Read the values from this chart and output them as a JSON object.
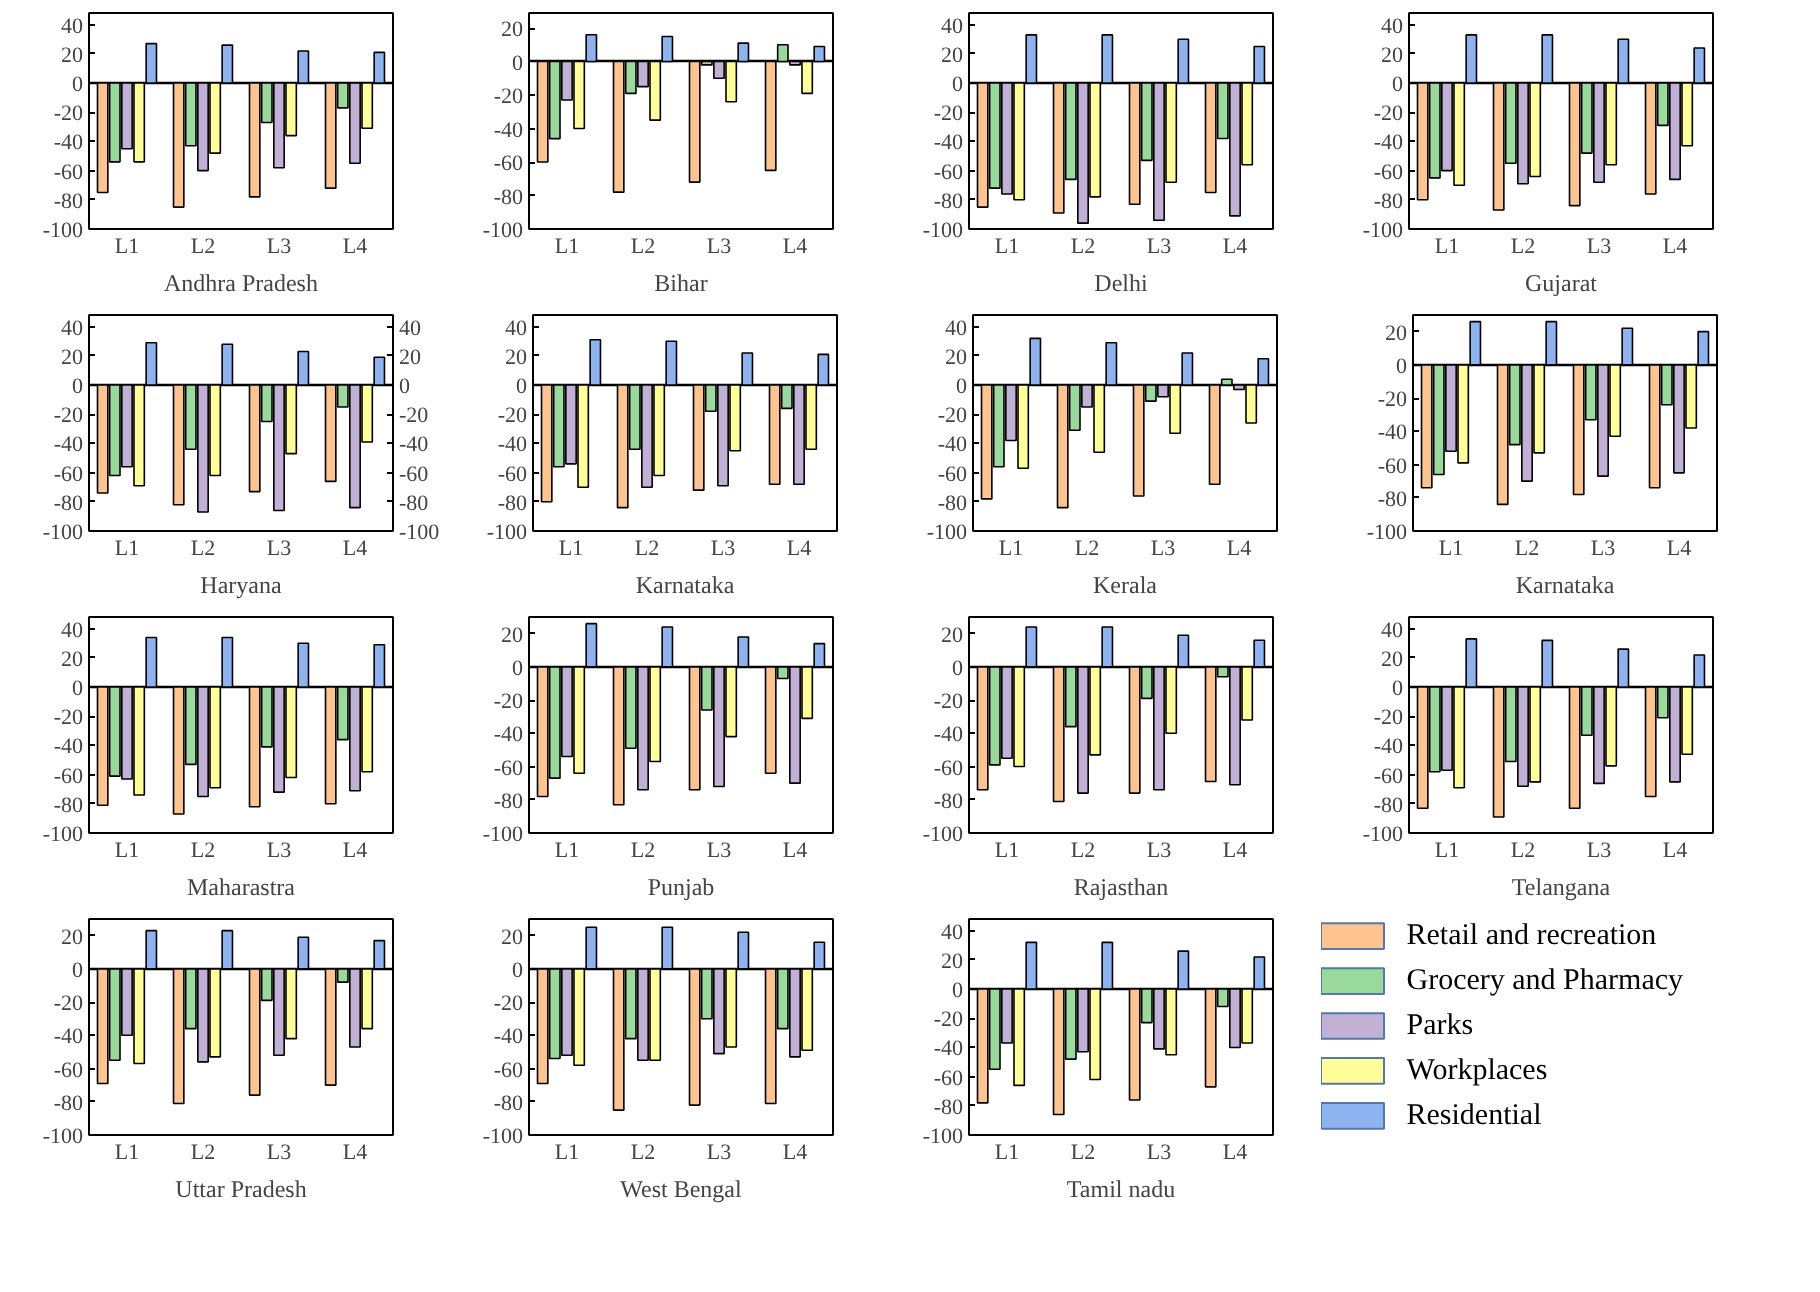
{
  "chart_data": [
    {
      "type": "bar",
      "xlabel": "Andhra Pradesh",
      "categories": [
        "L1",
        "L2",
        "L3",
        "L4"
      ],
      "ylim": [
        -100,
        48
      ],
      "yticks": [
        -100,
        -80,
        -60,
        -40,
        -20,
        0,
        20,
        40
      ],
      "series": [
        {
          "color": "#fdc48f",
          "values": [
            -75,
            -85,
            -78,
            -72
          ]
        },
        {
          "color": "#99d99b",
          "values": [
            -54,
            -43,
            -27,
            -17
          ]
        },
        {
          "color": "#c2b1d6",
          "values": [
            -45,
            -60,
            -58,
            -55
          ]
        },
        {
          "color": "#ffff99",
          "values": [
            -54,
            -48,
            -36,
            -31
          ]
        },
        {
          "color": "#8db4f0",
          "values": [
            27,
            26,
            22,
            21
          ]
        }
      ]
    },
    {
      "type": "bar",
      "xlabel": "Bihar",
      "categories": [
        "L1",
        "L2",
        "L3",
        "L4"
      ],
      "ylim": [
        -100,
        29
      ],
      "yticks": [
        -100,
        -80,
        -60,
        -40,
        -20,
        0,
        20
      ],
      "series": [
        {
          "color": "#fdc48f",
          "values": [
            -60,
            -78,
            -72,
            -65
          ]
        },
        {
          "color": "#99d99b",
          "values": [
            -46,
            -19,
            -2,
            10
          ]
        },
        {
          "color": "#c2b1d6",
          "values": [
            -23,
            -15,
            -10,
            -2
          ]
        },
        {
          "color": "#ffff99",
          "values": [
            -40,
            -35,
            -24,
            -19
          ]
        },
        {
          "color": "#8db4f0",
          "values": [
            16,
            15,
            11,
            9
          ]
        }
      ]
    },
    {
      "type": "bar",
      "xlabel": "Delhi",
      "categories": [
        "L1",
        "L2",
        "L3",
        "L4"
      ],
      "ylim": [
        -100,
        48
      ],
      "yticks": [
        -100,
        -80,
        -60,
        -40,
        -20,
        0,
        20,
        40
      ],
      "series": [
        {
          "color": "#fdc48f",
          "values": [
            -85,
            -89,
            -83,
            -75
          ]
        },
        {
          "color": "#99d99b",
          "values": [
            -72,
            -66,
            -53,
            -38
          ]
        },
        {
          "color": "#c2b1d6",
          "values": [
            -76,
            -96,
            -94,
            -91
          ]
        },
        {
          "color": "#ffff99",
          "values": [
            -80,
            -78,
            -68,
            -56
          ]
        },
        {
          "color": "#8db4f0",
          "values": [
            33,
            33,
            30,
            25
          ]
        }
      ]
    },
    {
      "type": "bar",
      "xlabel": "Gujarat",
      "categories": [
        "L1",
        "L2",
        "L3",
        "L4"
      ],
      "ylim": [
        -100,
        48
      ],
      "yticks": [
        -100,
        -80,
        -60,
        -40,
        -20,
        0,
        20,
        40
      ],
      "series": [
        {
          "color": "#fdc48f",
          "values": [
            -80,
            -87,
            -84,
            -76
          ]
        },
        {
          "color": "#99d99b",
          "values": [
            -65,
            -55,
            -48,
            -29
          ]
        },
        {
          "color": "#c2b1d6",
          "values": [
            -60,
            -69,
            -68,
            -66
          ]
        },
        {
          "color": "#ffff99",
          "values": [
            -70,
            -64,
            -56,
            -43
          ]
        },
        {
          "color": "#8db4f0",
          "values": [
            33,
            33,
            30,
            24
          ]
        }
      ]
    },
    {
      "type": "bar",
      "xlabel": "Haryana",
      "categories": [
        "L1",
        "L2",
        "L3",
        "L4"
      ],
      "ylim": [
        -100,
        48
      ],
      "yticks": [
        -100,
        -80,
        -60,
        -40,
        -20,
        0,
        20,
        40
      ],
      "y2lim": [
        -100,
        48
      ],
      "y2ticks": [
        -100,
        -80,
        -60,
        -40,
        -20,
        0,
        20,
        40
      ],
      "series": [
        {
          "color": "#fdc48f",
          "values": [
            -74,
            -82,
            -73,
            -66
          ]
        },
        {
          "color": "#99d99b",
          "values": [
            -62,
            -44,
            -25,
            -15
          ]
        },
        {
          "color": "#c2b1d6",
          "values": [
            -56,
            -87,
            -86,
            -84
          ]
        },
        {
          "color": "#ffff99",
          "values": [
            -69,
            -62,
            -47,
            -39
          ]
        },
        {
          "color": "#8db4f0",
          "values": [
            29,
            28,
            23,
            19
          ]
        }
      ]
    },
    {
      "type": "bar",
      "xlabel": "Karnataka",
      "categories": [
        "L1",
        "L2",
        "L3",
        "L4"
      ],
      "ylim": [
        -100,
        48
      ],
      "yticks": [
        -100,
        -80,
        -60,
        -40,
        -20,
        0,
        20,
        40
      ],
      "series": [
        {
          "color": "#fdc48f",
          "values": [
            -80,
            -84,
            -72,
            -68
          ]
        },
        {
          "color": "#99d99b",
          "values": [
            -56,
            -44,
            -18,
            -16
          ]
        },
        {
          "color": "#c2b1d6",
          "values": [
            -54,
            -70,
            -69,
            -68
          ]
        },
        {
          "color": "#ffff99",
          "values": [
            -70,
            -62,
            -45,
            -44
          ]
        },
        {
          "color": "#8db4f0",
          "values": [
            31,
            30,
            22,
            21
          ]
        }
      ]
    },
    {
      "type": "bar",
      "xlabel": "Kerala",
      "categories": [
        "L1",
        "L2",
        "L3",
        "L4"
      ],
      "ylim": [
        -100,
        48
      ],
      "yticks": [
        -100,
        -80,
        -60,
        -40,
        -20,
        0,
        20,
        40
      ],
      "series": [
        {
          "color": "#fdc48f",
          "values": [
            -78,
            -84,
            -76,
            -68
          ]
        },
        {
          "color": "#99d99b",
          "values": [
            -56,
            -31,
            -11,
            4
          ]
        },
        {
          "color": "#c2b1d6",
          "values": [
            -38,
            -15,
            -8,
            -3
          ]
        },
        {
          "color": "#ffff99",
          "values": [
            -57,
            -46,
            -33,
            -26
          ]
        },
        {
          "color": "#8db4f0",
          "values": [
            32,
            29,
            22,
            18
          ]
        }
      ]
    },
    {
      "type": "bar",
      "xlabel": "Karnataka",
      "categories": [
        "L1",
        "L2",
        "L3",
        "L4"
      ],
      "ylim": [
        -100,
        30
      ],
      "yticks": [
        -100,
        -80,
        -60,
        -40,
        -20,
        0,
        20
      ],
      "series": [
        {
          "color": "#fdc48f",
          "values": [
            -74,
            -84,
            -78,
            -74
          ]
        },
        {
          "color": "#99d99b",
          "values": [
            -66,
            -48,
            -33,
            -24
          ]
        },
        {
          "color": "#c2b1d6",
          "values": [
            -52,
            -70,
            -67,
            -65
          ]
        },
        {
          "color": "#ffff99",
          "values": [
            -59,
            -53,
            -43,
            -38
          ]
        },
        {
          "color": "#8db4f0",
          "values": [
            26,
            26,
            22,
            20
          ]
        }
      ]
    },
    {
      "type": "bar",
      "xlabel": "Maharastra",
      "categories": [
        "L1",
        "L2",
        "L3",
        "L4"
      ],
      "ylim": [
        -100,
        48
      ],
      "yticks": [
        -100,
        -80,
        -60,
        -40,
        -20,
        0,
        20,
        40
      ],
      "series": [
        {
          "color": "#fdc48f",
          "values": [
            -81,
            -87,
            -82,
            -80
          ]
        },
        {
          "color": "#99d99b",
          "values": [
            -61,
            -53,
            -41,
            -36
          ]
        },
        {
          "color": "#c2b1d6",
          "values": [
            -63,
            -75,
            -72,
            -71
          ]
        },
        {
          "color": "#ffff99",
          "values": [
            -74,
            -69,
            -62,
            -58
          ]
        },
        {
          "color": "#8db4f0",
          "values": [
            34,
            34,
            30,
            29
          ]
        }
      ]
    },
    {
      "type": "bar",
      "xlabel": "Punjab",
      "categories": [
        "L1",
        "L2",
        "L3",
        "L4"
      ],
      "ylim": [
        -100,
        30
      ],
      "yticks": [
        -100,
        -80,
        -60,
        -40,
        -20,
        0,
        20
      ],
      "series": [
        {
          "color": "#fdc48f",
          "values": [
            -78,
            -83,
            -74,
            -64
          ]
        },
        {
          "color": "#99d99b",
          "values": [
            -67,
            -49,
            -26,
            -7
          ]
        },
        {
          "color": "#c2b1d6",
          "values": [
            -54,
            -74,
            -72,
            -70
          ]
        },
        {
          "color": "#ffff99",
          "values": [
            -64,
            -57,
            -42,
            -31
          ]
        },
        {
          "color": "#8db4f0",
          "values": [
            26,
            24,
            18,
            14
          ]
        }
      ]
    },
    {
      "type": "bar",
      "xlabel": "Rajasthan",
      "categories": [
        "L1",
        "L2",
        "L3",
        "L4"
      ],
      "ylim": [
        -100,
        30
      ],
      "yticks": [
        -100,
        -80,
        -60,
        -40,
        -20,
        0,
        20
      ],
      "series": [
        {
          "color": "#fdc48f",
          "values": [
            -74,
            -81,
            -76,
            -69
          ]
        },
        {
          "color": "#99d99b",
          "values": [
            -59,
            -36,
            -19,
            -6
          ]
        },
        {
          "color": "#c2b1d6",
          "values": [
            -55,
            -76,
            -74,
            -71
          ]
        },
        {
          "color": "#ffff99",
          "values": [
            -60,
            -53,
            -40,
            -32
          ]
        },
        {
          "color": "#8db4f0",
          "values": [
            24,
            24,
            19,
            16
          ]
        }
      ]
    },
    {
      "type": "bar",
      "xlabel": "Telangana",
      "categories": [
        "L1",
        "L2",
        "L3",
        "L4"
      ],
      "ylim": [
        -100,
        48
      ],
      "yticks": [
        -100,
        -80,
        -60,
        -40,
        -20,
        0,
        20,
        40
      ],
      "series": [
        {
          "color": "#fdc48f",
          "values": [
            -83,
            -89,
            -83,
            -75
          ]
        },
        {
          "color": "#99d99b",
          "values": [
            -58,
            -51,
            -33,
            -21
          ]
        },
        {
          "color": "#c2b1d6",
          "values": [
            -57,
            -68,
            -66,
            -65
          ]
        },
        {
          "color": "#ffff99",
          "values": [
            -69,
            -65,
            -54,
            -46
          ]
        },
        {
          "color": "#8db4f0",
          "values": [
            33,
            32,
            26,
            22
          ]
        }
      ]
    },
    {
      "type": "bar",
      "xlabel": "Uttar Pradesh",
      "categories": [
        "L1",
        "L2",
        "L3",
        "L4"
      ],
      "ylim": [
        -100,
        30
      ],
      "yticks": [
        -100,
        -80,
        -60,
        -40,
        -20,
        0,
        20
      ],
      "series": [
        {
          "color": "#fdc48f",
          "values": [
            -69,
            -81,
            -76,
            -70
          ]
        },
        {
          "color": "#99d99b",
          "values": [
            -55,
            -36,
            -19,
            -8
          ]
        },
        {
          "color": "#c2b1d6",
          "values": [
            -40,
            -56,
            -52,
            -47
          ]
        },
        {
          "color": "#ffff99",
          "values": [
            -57,
            -53,
            -42,
            -36
          ]
        },
        {
          "color": "#8db4f0",
          "values": [
            23,
            23,
            19,
            17
          ]
        }
      ]
    },
    {
      "type": "bar",
      "xlabel": "West Bengal",
      "categories": [
        "L1",
        "L2",
        "L3",
        "L4"
      ],
      "ylim": [
        -100,
        30
      ],
      "yticks": [
        -100,
        -80,
        -60,
        -40,
        -20,
        0,
        20
      ],
      "series": [
        {
          "color": "#fdc48f",
          "values": [
            -69,
            -85,
            -82,
            -81
          ]
        },
        {
          "color": "#99d99b",
          "values": [
            -54,
            -42,
            -30,
            -36
          ]
        },
        {
          "color": "#c2b1d6",
          "values": [
            -52,
            -55,
            -51,
            -53
          ]
        },
        {
          "color": "#ffff99",
          "values": [
            -58,
            -55,
            -47,
            -49
          ]
        },
        {
          "color": "#8db4f0",
          "values": [
            25,
            25,
            22,
            16
          ]
        }
      ]
    },
    {
      "type": "bar",
      "xlabel": "Tamil nadu",
      "categories": [
        "L1",
        "L2",
        "L3",
        "L4"
      ],
      "ylim": [
        -100,
        48
      ],
      "yticks": [
        -100,
        -80,
        -60,
        -40,
        -20,
        0,
        20,
        40
      ],
      "legend": "right",
      "series": [
        {
          "name": "Retail and recreation",
          "color": "#fdc48f",
          "values": [
            -78,
            -86,
            -76,
            -67
          ]
        },
        {
          "name": "Grocery and Pharmacy",
          "color": "#99d99b",
          "values": [
            -55,
            -48,
            -23,
            -12
          ]
        },
        {
          "name": "Parks",
          "color": "#c2b1d6",
          "values": [
            -37,
            -43,
            -41,
            -40
          ]
        },
        {
          "name": "Workplaces",
          "color": "#ffff99",
          "values": [
            -66,
            -62,
            -45,
            -37
          ]
        },
        {
          "name": "Residential",
          "color": "#8db4f0",
          "values": [
            32,
            32,
            26,
            22
          ]
        }
      ]
    }
  ]
}
